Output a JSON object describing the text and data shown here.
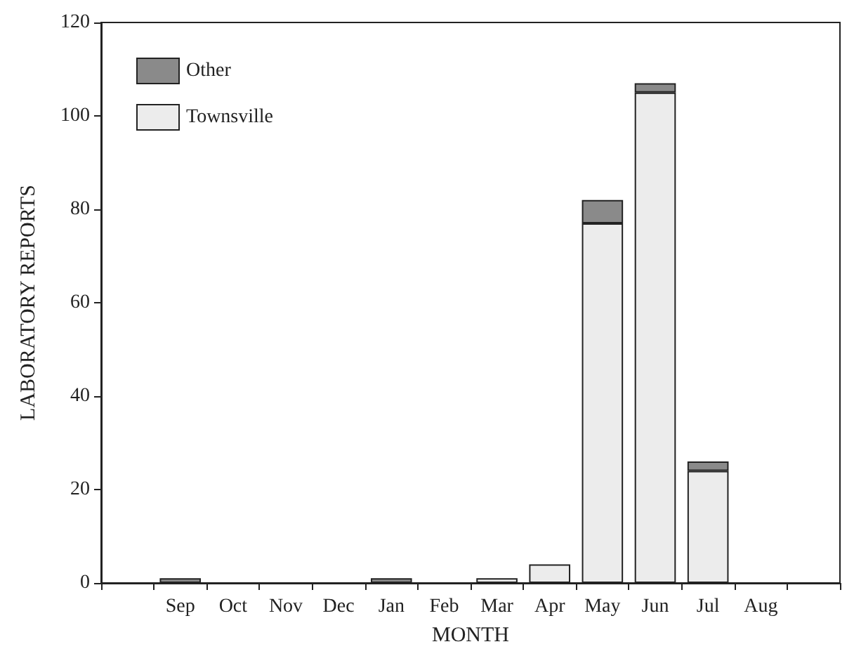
{
  "chart_data": {
    "type": "bar",
    "stacked": true,
    "xlabel": "MONTH",
    "ylabel": "LABORATORY REPORTS",
    "categories": [
      null,
      "Sep",
      "Oct",
      "Nov",
      "Dec",
      "Jan",
      "Feb",
      "Mar",
      "Apr",
      "May",
      "Jun",
      "Jul",
      "Aug",
      null
    ],
    "series": [
      {
        "name": "Townsville",
        "color": "#ececec",
        "values": [
          null,
          0,
          0,
          0,
          0,
          0,
          0,
          1,
          4,
          77,
          105,
          24,
          0,
          null
        ]
      },
      {
        "name": "Other",
        "color": "#8a8a8a",
        "values": [
          null,
          1,
          0,
          0,
          0,
          1,
          0,
          0,
          0,
          5,
          2,
          2,
          0,
          null
        ]
      }
    ],
    "ylim": [
      0,
      120
    ],
    "yticks": [
      0,
      20,
      40,
      60,
      80,
      100,
      120
    ],
    "grid": false,
    "legend": "top left"
  }
}
